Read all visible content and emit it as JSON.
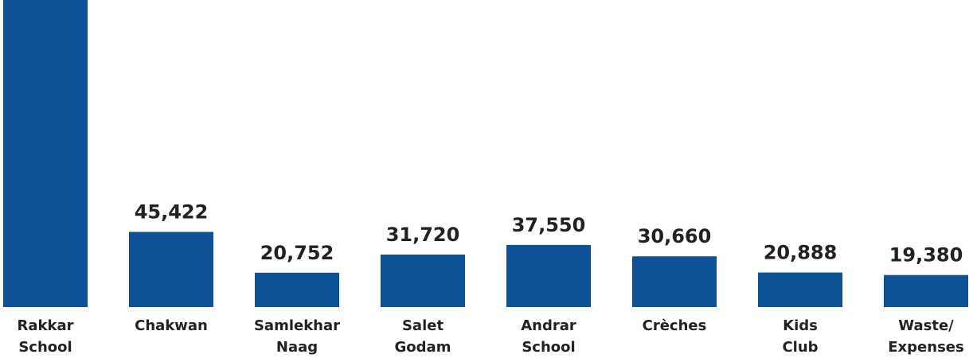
{
  "chart_data": {
    "type": "bar",
    "categories": [
      [
        "Rakkar",
        "School"
      ],
      [
        "Chakwan"
      ],
      [
        "Samlekhar",
        "Naag"
      ],
      [
        "Salet",
        "Godam"
      ],
      [
        "Andrar",
        "School"
      ],
      [
        "Crèches"
      ],
      [
        "Kids",
        "Club"
      ],
      [
        "Waste/",
        "Expenses"
      ]
    ],
    "values": [
      186000,
      45422,
      20752,
      31720,
      37550,
      30660,
      20888,
      19380
    ],
    "value_labels": [
      null,
      "45,422",
      "20,752",
      "31,720",
      "37,550",
      "30,660",
      "20,888",
      "19,380"
    ],
    "color": "#0d5196"
  }
}
